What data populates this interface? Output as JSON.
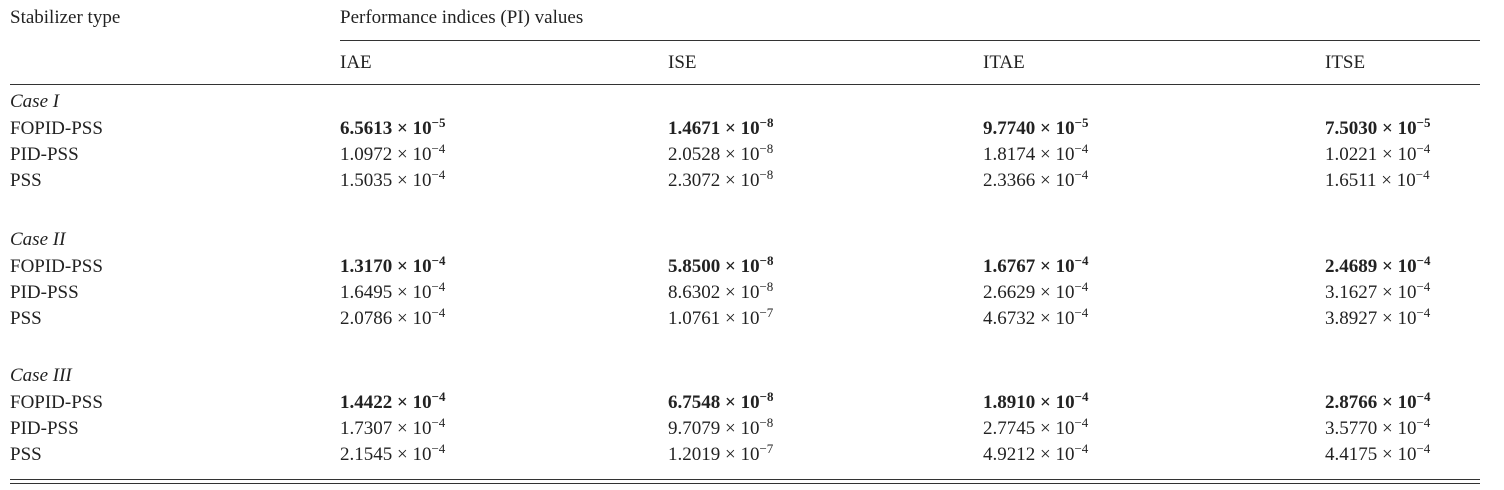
{
  "header": {
    "stabilizer": "Stabilizer type",
    "group": "Performance indices (PI) values",
    "columns": [
      "IAE",
      "ISE",
      "ITAE",
      "ITSE"
    ]
  },
  "cases": [
    {
      "label": "Case I",
      "rows": [
        {
          "type": "FOPID-PSS",
          "bold": true,
          "values": [
            {
              "base": "6.5613 × 10",
              "exp": "−5"
            },
            {
              "base": "1.4671 × 10",
              "exp": "−8"
            },
            {
              "base": "9.7740 × 10",
              "exp": "−5"
            },
            {
              "base": "7.5030 × 10",
              "exp": "−5"
            }
          ]
        },
        {
          "type": "PID-PSS",
          "bold": false,
          "values": [
            {
              "base": "1.0972 × 10",
              "exp": "−4"
            },
            {
              "base": "2.0528 × 10",
              "exp": "−8"
            },
            {
              "base": "1.8174 × 10",
              "exp": "−4"
            },
            {
              "base": "1.0221 × 10",
              "exp": "−4"
            }
          ]
        },
        {
          "type": "PSS",
          "bold": false,
          "values": [
            {
              "base": "1.5035 × 10",
              "exp": "−4"
            },
            {
              "base": "2.3072 × 10",
              "exp": "−8"
            },
            {
              "base": "2.3366 × 10",
              "exp": "−4"
            },
            {
              "base": "1.6511 × 10",
              "exp": "−4"
            }
          ]
        }
      ]
    },
    {
      "label": "Case II",
      "rows": [
        {
          "type": "FOPID-PSS",
          "bold": true,
          "values": [
            {
              "base": "1.3170 × 10",
              "exp": "−4"
            },
            {
              "base": "5.8500 × 10",
              "exp": "−8"
            },
            {
              "base": "1.6767 × 10",
              "exp": "−4"
            },
            {
              "base": "2.4689 × 10",
              "exp": "−4"
            }
          ]
        },
        {
          "type": "PID-PSS",
          "bold": false,
          "values": [
            {
              "base": "1.6495 × 10",
              "exp": "−4"
            },
            {
              "base": "8.6302 × 10",
              "exp": "−8"
            },
            {
              "base": "2.6629 × 10",
              "exp": "−4"
            },
            {
              "base": "3.1627 × 10",
              "exp": "−4"
            }
          ]
        },
        {
          "type": "PSS",
          "bold": false,
          "values": [
            {
              "base": "2.0786 × 10",
              "exp": "−4"
            },
            {
              "base": "1.0761 × 10",
              "exp": "−7"
            },
            {
              "base": "4.6732 × 10",
              "exp": "−4"
            },
            {
              "base": "3.8927 × 10",
              "exp": "−4"
            }
          ]
        }
      ]
    },
    {
      "label": "Case III",
      "rows": [
        {
          "type": "FOPID-PSS",
          "bold": true,
          "values": [
            {
              "base": "1.4422 × 10",
              "exp": "−4"
            },
            {
              "base": "6.7548 × 10",
              "exp": "−8"
            },
            {
              "base": "1.8910 × 10",
              "exp": "−4"
            },
            {
              "base": "2.8766 × 10",
              "exp": "−4"
            }
          ]
        },
        {
          "type": "PID-PSS",
          "bold": false,
          "values": [
            {
              "base": "1.7307 × 10",
              "exp": "−4"
            },
            {
              "base": "9.7079 × 10",
              "exp": "−8"
            },
            {
              "base": "2.7745 × 10",
              "exp": "−4"
            },
            {
              "base": "3.5770 × 10",
              "exp": "−4"
            }
          ]
        },
        {
          "type": "PSS",
          "bold": false,
          "values": [
            {
              "base": "2.1545 × 10",
              "exp": "−4"
            },
            {
              "base": "1.2019 × 10",
              "exp": "−7"
            },
            {
              "base": "4.9212 × 10",
              "exp": "−4"
            },
            {
              "base": "4.4175 × 10",
              "exp": "−4"
            }
          ]
        }
      ]
    }
  ]
}
